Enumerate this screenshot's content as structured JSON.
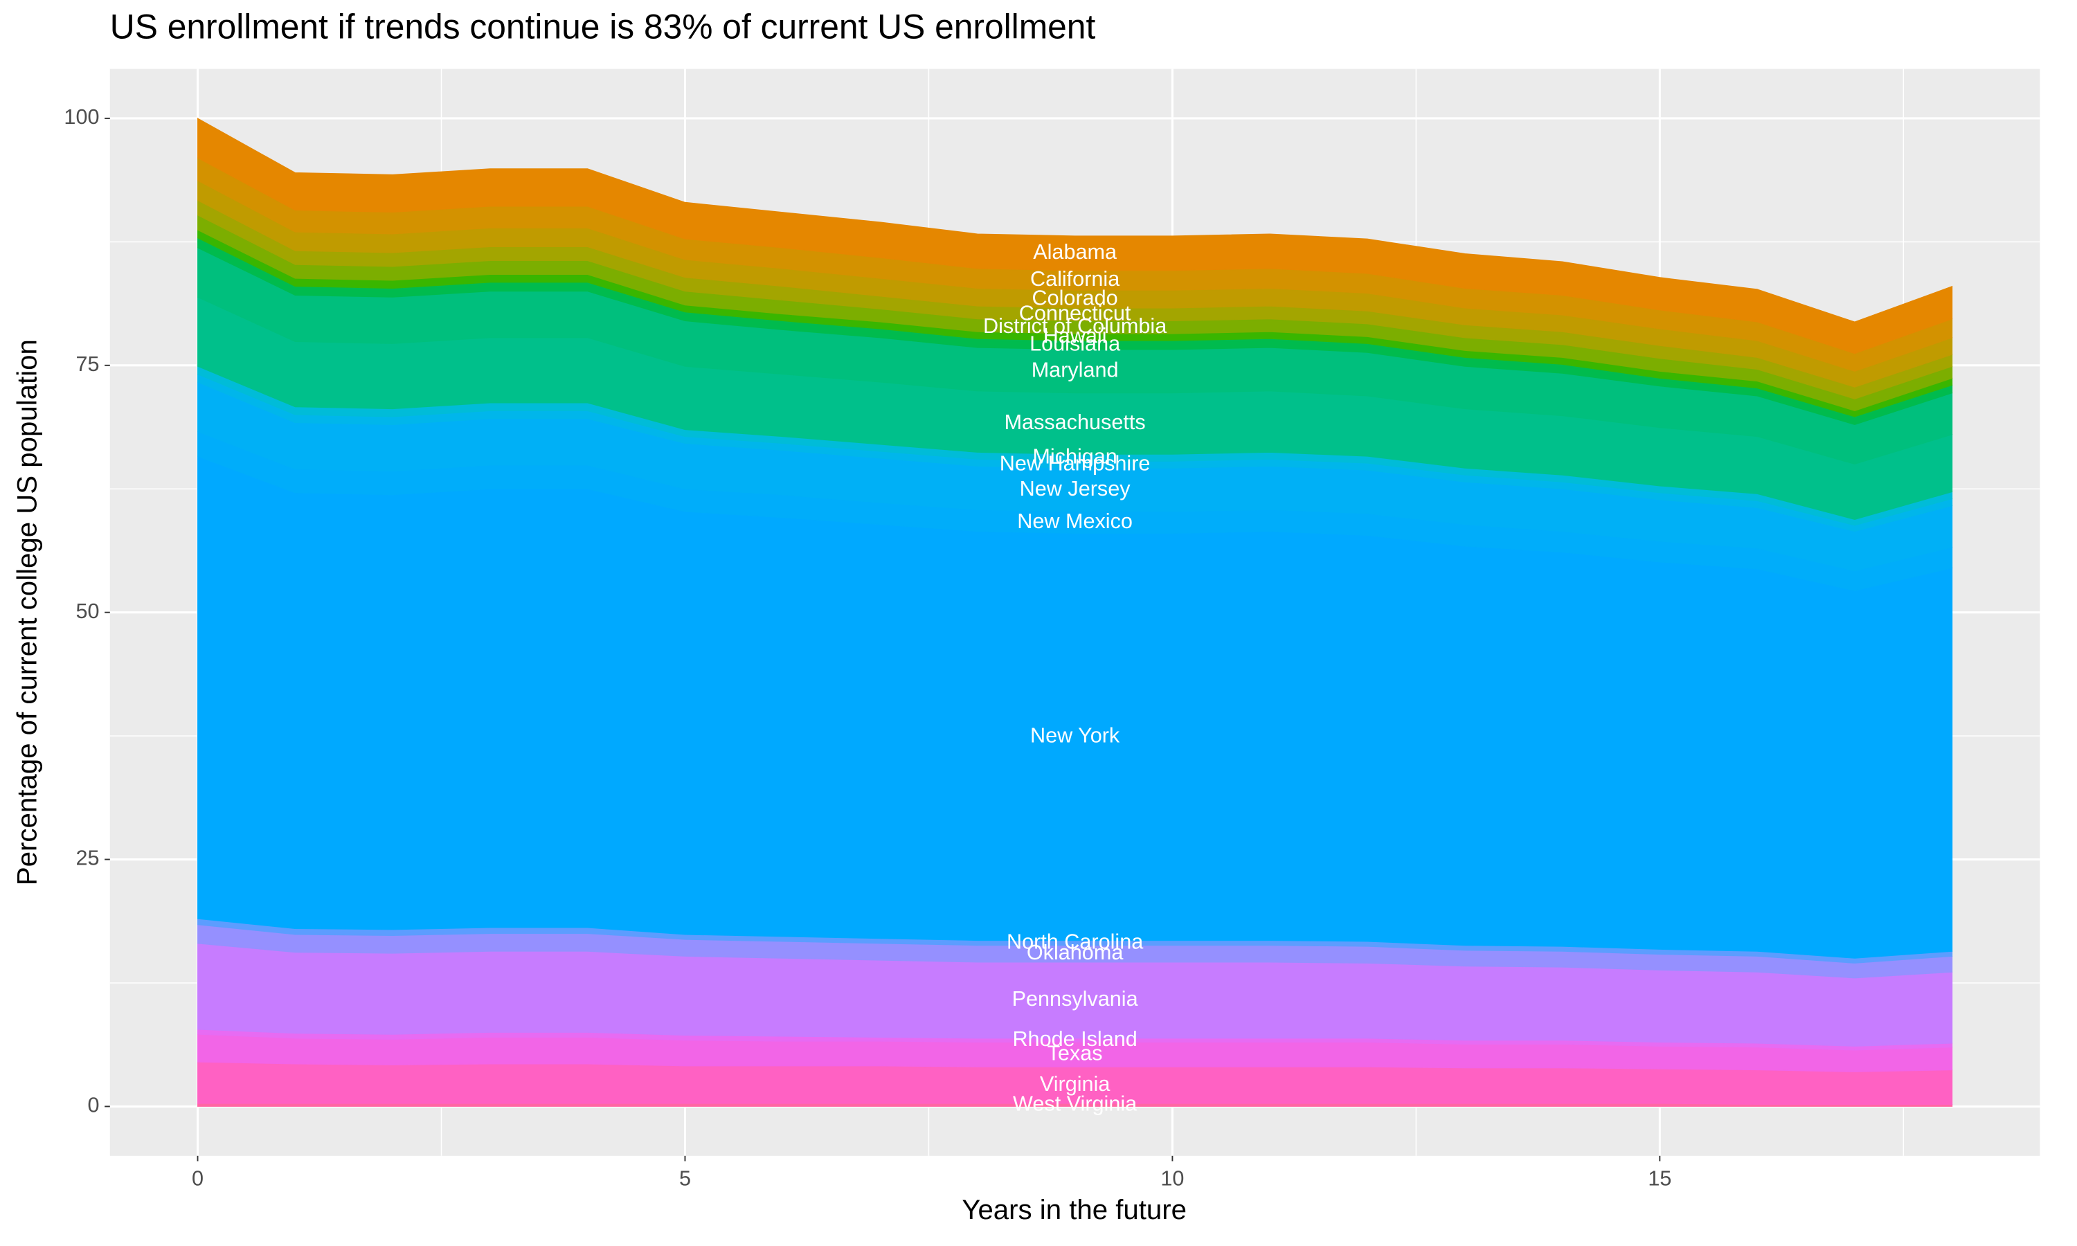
{
  "chart_data": {
    "type": "stacked_area",
    "title": "US enrollment if trends continue is 83% of current US enrollment",
    "x_label": "Years in the future",
    "y_label": "Percentage of current college US population",
    "x": [
      0,
      1,
      2,
      3,
      4,
      5,
      6,
      7,
      8,
      9,
      10,
      11,
      12,
      13,
      14,
      15,
      16,
      17,
      18
    ],
    "xlim": [
      -0.9,
      18.9
    ],
    "ylim": [
      -5,
      105
    ],
    "xticks": [
      0,
      5,
      10,
      15
    ],
    "yticks": [
      0,
      25,
      50,
      75,
      100
    ],
    "grid": true,
    "series": [
      {
        "name": "West Virginia",
        "color": "#FF67A4",
        "values": [
          0.3,
          0.3,
          0.3,
          0.3,
          0.3,
          0.3,
          0.3,
          0.3,
          0.3,
          0.3,
          0.3,
          0.3,
          0.3,
          0.3,
          0.3,
          0.3,
          0.2,
          0.2,
          0.2
        ]
      },
      {
        "name": "Virginia",
        "color": "#FF61C3",
        "values": [
          4.2,
          4.0,
          3.9,
          4.0,
          4.0,
          3.8,
          3.8,
          3.8,
          3.7,
          3.7,
          3.7,
          3.7,
          3.7,
          3.6,
          3.6,
          3.5,
          3.5,
          3.3,
          3.5
        ]
      },
      {
        "name": "Texas",
        "color": "#F265E7",
        "values": [
          2.8,
          2.6,
          2.6,
          2.7,
          2.7,
          2.6,
          2.5,
          2.5,
          2.5,
          2.5,
          2.5,
          2.5,
          2.5,
          2.4,
          2.4,
          2.3,
          2.3,
          2.2,
          2.3
        ]
      },
      {
        "name": "Rhode Island",
        "color": "#E76BF3",
        "values": [
          0.5,
          0.5,
          0.5,
          0.5,
          0.5,
          0.5,
          0.5,
          0.4,
          0.4,
          0.4,
          0.4,
          0.4,
          0.4,
          0.4,
          0.4,
          0.4,
          0.4,
          0.4,
          0.4
        ]
      },
      {
        "name": "Pennsylvania",
        "color": "#C77CFF",
        "values": [
          8.7,
          8.2,
          8.2,
          8.2,
          8.2,
          8.0,
          7.9,
          7.8,
          7.7,
          7.7,
          7.7,
          7.7,
          7.6,
          7.5,
          7.4,
          7.3,
          7.2,
          6.9,
          7.2
        ]
      },
      {
        "name": "Oklahoma",
        "color": "#9590FF",
        "values": [
          1.9,
          1.8,
          1.8,
          1.8,
          1.8,
          1.7,
          1.7,
          1.7,
          1.7,
          1.7,
          1.7,
          1.7,
          1.7,
          1.6,
          1.6,
          1.6,
          1.6,
          1.5,
          1.6
        ]
      },
      {
        "name": "North Carolina",
        "color": "#5C9DFF",
        "values": [
          0.6,
          0.6,
          0.6,
          0.6,
          0.6,
          0.5,
          0.5,
          0.5,
          0.5,
          0.5,
          0.5,
          0.5,
          0.5,
          0.5,
          0.5,
          0.5,
          0.5,
          0.5,
          0.5
        ]
      },
      {
        "name": "New York",
        "color": "#00A9FF",
        "values": [
          46.8,
          44.1,
          44.0,
          44.4,
          44.4,
          42.8,
          42.4,
          41.9,
          41.4,
          41.2,
          41.2,
          41.4,
          41.1,
          40.4,
          39.9,
          39.2,
          38.7,
          37.2,
          38.8
        ]
      },
      {
        "name": "New Mexico",
        "color": "#00ADFA",
        "values": [
          2.5,
          2.4,
          2.4,
          2.4,
          2.4,
          2.3,
          2.3,
          2.2,
          2.2,
          2.2,
          2.2,
          2.2,
          2.2,
          2.2,
          2.1,
          2.1,
          2.1,
          2.0,
          2.1
        ]
      },
      {
        "name": "New Jersey",
        "color": "#00B0F6",
        "values": [
          5.0,
          4.7,
          4.7,
          4.7,
          4.7,
          4.6,
          4.5,
          4.5,
          4.4,
          4.4,
          4.4,
          4.4,
          4.4,
          4.3,
          4.3,
          4.2,
          4.1,
          4.0,
          4.2
        ]
      },
      {
        "name": "New Hampshire",
        "color": "#00B6EB",
        "values": [
          0.8,
          0.8,
          0.8,
          0.8,
          0.8,
          0.7,
          0.7,
          0.7,
          0.7,
          0.7,
          0.7,
          0.7,
          0.7,
          0.7,
          0.7,
          0.7,
          0.7,
          0.6,
          0.7
        ]
      },
      {
        "name": "Michigan",
        "color": "#00BCD8",
        "values": [
          0.8,
          0.8,
          0.8,
          0.8,
          0.8,
          0.7,
          0.7,
          0.7,
          0.7,
          0.7,
          0.7,
          0.7,
          0.7,
          0.7,
          0.7,
          0.7,
          0.7,
          0.6,
          0.7
        ]
      },
      {
        "name": "Massachusetts",
        "color": "#00C08B",
        "values": [
          7.0,
          6.6,
          6.6,
          6.6,
          6.6,
          6.4,
          6.3,
          6.3,
          6.2,
          6.2,
          6.2,
          6.2,
          6.1,
          6.0,
          6.0,
          5.9,
          5.8,
          5.6,
          5.8
        ]
      },
      {
        "name": "Maryland",
        "color": "#00BF7D",
        "values": [
          5.0,
          4.7,
          4.7,
          4.7,
          4.7,
          4.6,
          4.5,
          4.5,
          4.4,
          4.4,
          4.4,
          4.4,
          4.4,
          4.3,
          4.3,
          4.2,
          4.1,
          4.0,
          4.2
        ]
      },
      {
        "name": "Louisiana",
        "color": "#00BB4E",
        "values": [
          1.0,
          0.9,
          0.9,
          0.9,
          0.9,
          0.9,
          0.9,
          0.9,
          0.9,
          0.9,
          0.9,
          0.9,
          0.9,
          0.9,
          0.9,
          0.8,
          0.8,
          0.8,
          0.8
        ]
      },
      {
        "name": "Hawaii",
        "color": "#39B600",
        "values": [
          0.8,
          0.8,
          0.8,
          0.8,
          0.8,
          0.7,
          0.7,
          0.7,
          0.7,
          0.7,
          0.7,
          0.7,
          0.7,
          0.7,
          0.7,
          0.7,
          0.7,
          0.6,
          0.7
        ]
      },
      {
        "name": "District of Columbia",
        "color": "#7CAE00",
        "values": [
          1.5,
          1.4,
          1.4,
          1.4,
          1.4,
          1.4,
          1.4,
          1.3,
          1.3,
          1.3,
          1.3,
          1.3,
          1.3,
          1.3,
          1.3,
          1.3,
          1.2,
          1.2,
          1.2
        ]
      },
      {
        "name": "Connecticut",
        "color": "#A3A500",
        "values": [
          1.5,
          1.4,
          1.4,
          1.4,
          1.4,
          1.4,
          1.4,
          1.3,
          1.3,
          1.3,
          1.3,
          1.3,
          1.3,
          1.3,
          1.3,
          1.3,
          1.2,
          1.2,
          1.2
        ]
      },
      {
        "name": "Colorado",
        "color": "#C09B00",
        "values": [
          2.0,
          1.9,
          1.9,
          1.9,
          1.9,
          1.8,
          1.8,
          1.8,
          1.8,
          1.8,
          1.8,
          1.8,
          1.8,
          1.7,
          1.7,
          1.7,
          1.7,
          1.6,
          1.7
        ]
      },
      {
        "name": "California",
        "color": "#D39200",
        "values": [
          2.3,
          2.2,
          2.2,
          2.2,
          2.2,
          2.1,
          2.1,
          2.1,
          2.0,
          2.0,
          2.0,
          2.0,
          2.0,
          2.0,
          2.0,
          1.9,
          1.9,
          1.8,
          1.9
        ]
      },
      {
        "name": "Alabama",
        "color": "#E58700",
        "values": [
          4.0,
          3.8,
          3.8,
          3.8,
          3.8,
          3.7,
          3.6,
          3.6,
          3.5,
          3.5,
          3.5,
          3.5,
          3.5,
          3.5,
          3.4,
          3.3,
          3.3,
          3.2,
          3.3
        ]
      }
    ]
  }
}
